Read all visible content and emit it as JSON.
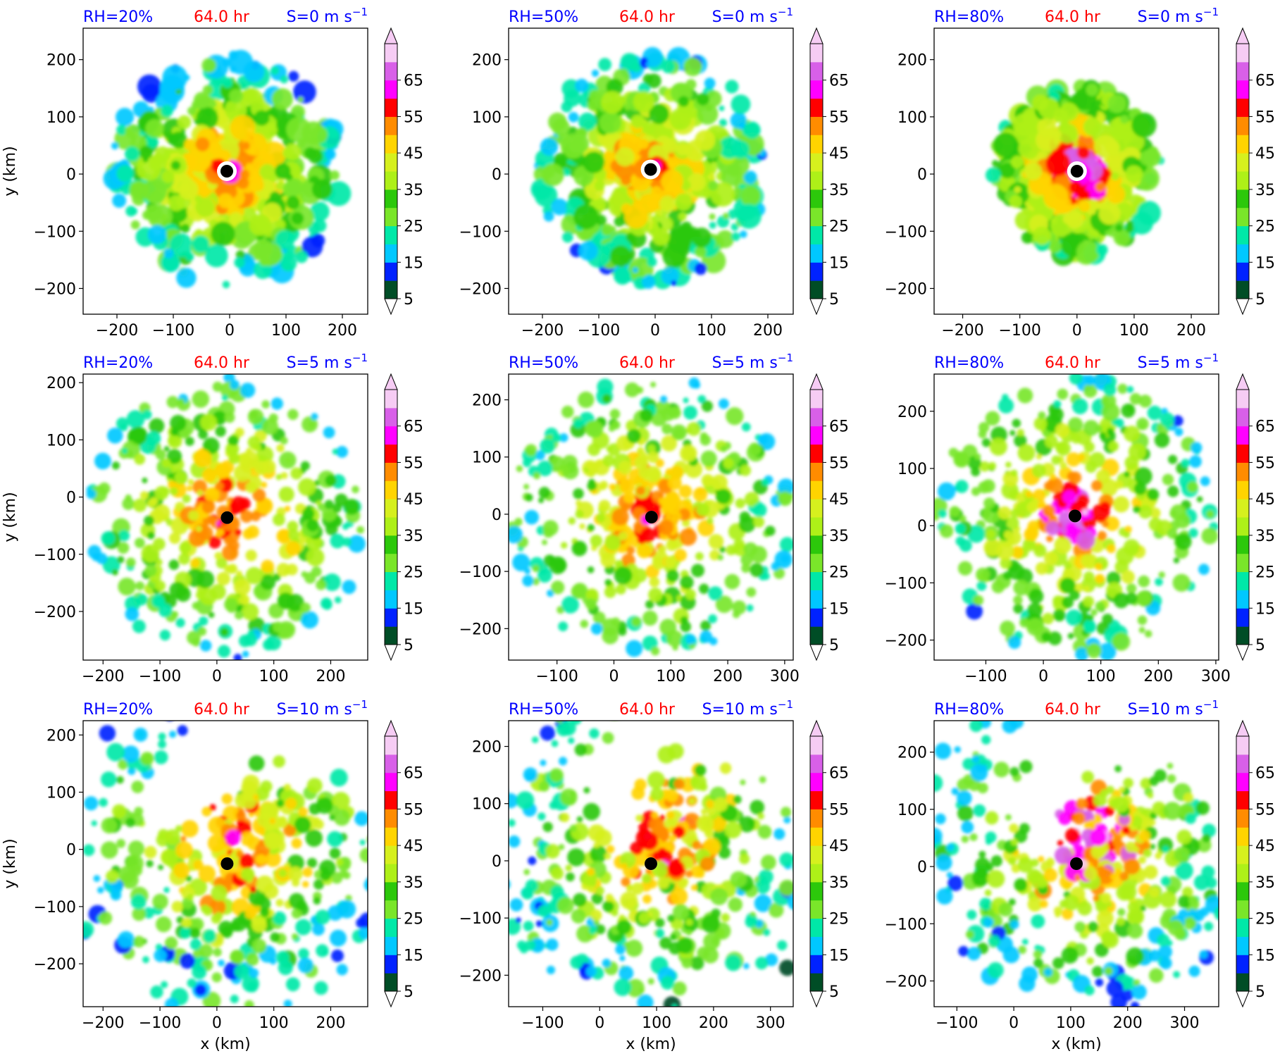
{
  "chart_data": {
    "type": "heatmap",
    "time_label": "64.0 hr",
    "colors": {
      "rh_label": "#0000ff",
      "time_label": "#ff0000",
      "shear_label": "#0000ff",
      "center_marker": "#000000"
    },
    "colorbar": {
      "ticks": [
        "5",
        "15",
        "25",
        "35",
        "45",
        "55",
        "65"
      ],
      "levels": [
        5,
        10,
        15,
        20,
        25,
        30,
        35,
        40,
        45,
        50,
        55,
        60,
        65,
        70
      ],
      "colors": [
        "#004d26",
        "#0022ff",
        "#00c8ff",
        "#00e8a8",
        "#7ae62a",
        "#2cc80b",
        "#aef018",
        "#d6f01e",
        "#ffd400",
        "#ff8c00",
        "#ff0000",
        "#ff00ff",
        "#d860e8",
        "#f6ccf4"
      ],
      "extend": "both"
    },
    "xlabel": "x (km)",
    "ylabel": "y (km)",
    "panels": [
      {
        "rh": "RH=20%",
        "shear_prefix": "S=0 m s",
        "shear_exp": "−1",
        "xlim": [
          -260,
          245
        ],
        "ylim": [
          -245,
          255
        ],
        "xticks": [
          {
            "v": -200,
            "t": "−200"
          },
          {
            "v": -100,
            "t": "−100"
          },
          {
            "v": 0,
            "t": "0"
          },
          {
            "v": 100,
            "t": "100"
          },
          {
            "v": 200,
            "t": "200"
          }
        ],
        "yticks": [
          {
            "v": 200,
            "t": "200"
          },
          {
            "v": 100,
            "t": "100"
          },
          {
            "v": 0,
            "t": "0"
          },
          {
            "v": -100,
            "t": "−100"
          },
          {
            "v": -200,
            "t": "−200"
          }
        ],
        "center": {
          "x": -5,
          "y": 5
        }
      },
      {
        "rh": "RH=50%",
        "shear_prefix": "S=0 m s",
        "shear_exp": "−1",
        "xlim": [
          -260,
          245
        ],
        "ylim": [
          -245,
          255
        ],
        "xticks": [
          {
            "v": -200,
            "t": "−200"
          },
          {
            "v": -100,
            "t": "−100"
          },
          {
            "v": 0,
            "t": "0"
          },
          {
            "v": 100,
            "t": "100"
          },
          {
            "v": 200,
            "t": "200"
          }
        ],
        "yticks": [
          {
            "v": 200,
            "t": "200"
          },
          {
            "v": 100,
            "t": "100"
          },
          {
            "v": 0,
            "t": "0"
          },
          {
            "v": -100,
            "t": "−100"
          },
          {
            "v": -200,
            "t": "−200"
          }
        ],
        "center": {
          "x": -8,
          "y": 8
        }
      },
      {
        "rh": "RH=80%",
        "shear_prefix": "S=0 m s",
        "shear_exp": "−1",
        "xlim": [
          -250,
          248
        ],
        "ylim": [
          -245,
          255
        ],
        "xticks": [
          {
            "v": -200,
            "t": "−200"
          },
          {
            "v": -100,
            "t": "−100"
          },
          {
            "v": 0,
            "t": "0"
          },
          {
            "v": 100,
            "t": "100"
          },
          {
            "v": 200,
            "t": "200"
          }
        ],
        "yticks": [
          {
            "v": 200,
            "t": "200"
          },
          {
            "v": 100,
            "t": "100"
          },
          {
            "v": 0,
            "t": "0"
          },
          {
            "v": -100,
            "t": "−100"
          },
          {
            "v": -200,
            "t": "−200"
          }
        ],
        "center": {
          "x": 0,
          "y": 5
        }
      },
      {
        "rh": "RH=20%",
        "shear_prefix": "S=5 m s",
        "shear_exp": "−1",
        "xlim": [
          -235,
          265
        ],
        "ylim": [
          -285,
          215
        ],
        "xticks": [
          {
            "v": -200,
            "t": "−200"
          },
          {
            "v": -100,
            "t": "−100"
          },
          {
            "v": 0,
            "t": "0"
          },
          {
            "v": 100,
            "t": "100"
          },
          {
            "v": 200,
            "t": "200"
          }
        ],
        "yticks": [
          {
            "v": 200,
            "t": "200"
          },
          {
            "v": 100,
            "t": "100"
          },
          {
            "v": 0,
            "t": "0"
          },
          {
            "v": -100,
            "t": "−100"
          },
          {
            "v": -200,
            "t": "−200"
          }
        ],
        "center": {
          "x": 18,
          "y": -36
        }
      },
      {
        "rh": "RH=50%",
        "shear_prefix": "S=5 m s",
        "shear_exp": "−1",
        "xlim": [
          -185,
          315
        ],
        "ylim": [
          -255,
          245
        ],
        "xticks": [
          {
            "v": -100,
            "t": "−100"
          },
          {
            "v": 0,
            "t": "0"
          },
          {
            "v": 100,
            "t": "100"
          },
          {
            "v": 200,
            "t": "200"
          },
          {
            "v": 300,
            "t": "300"
          }
        ],
        "yticks": [
          {
            "v": 200,
            "t": "200"
          },
          {
            "v": 100,
            "t": "100"
          },
          {
            "v": 0,
            "t": "0"
          },
          {
            "v": -100,
            "t": "−100"
          },
          {
            "v": -200,
            "t": "−200"
          }
        ],
        "center": {
          "x": 66,
          "y": -5
        }
      },
      {
        "rh": "RH=80%",
        "shear_prefix": "S=5 m s",
        "shear_exp": "−1",
        "xlim": [
          -190,
          305
        ],
        "ylim": [
          -235,
          265
        ],
        "xticks": [
          {
            "v": -100,
            "t": "−100"
          },
          {
            "v": 0,
            "t": "0"
          },
          {
            "v": 100,
            "t": "100"
          },
          {
            "v": 200,
            "t": "200"
          },
          {
            "v": 300,
            "t": "300"
          }
        ],
        "yticks": [
          {
            "v": 200,
            "t": "200"
          },
          {
            "v": 100,
            "t": "100"
          },
          {
            "v": 0,
            "t": "0"
          },
          {
            "v": -100,
            "t": "−100"
          },
          {
            "v": -200,
            "t": "−200"
          }
        ],
        "center": {
          "x": 55,
          "y": 17
        }
      },
      {
        "rh": "RH=20%",
        "shear_prefix": "S=10 m s",
        "shear_exp": "−1",
        "xlim": [
          -235,
          265
        ],
        "ylim": [
          -275,
          225
        ],
        "xticks": [
          {
            "v": -200,
            "t": "−200"
          },
          {
            "v": -100,
            "t": "−100"
          },
          {
            "v": 0,
            "t": "0"
          },
          {
            "v": 100,
            "t": "100"
          },
          {
            "v": 200,
            "t": "200"
          }
        ],
        "yticks": [
          {
            "v": 200,
            "t": "200"
          },
          {
            "v": 100,
            "t": "100"
          },
          {
            "v": 0,
            "t": "0"
          },
          {
            "v": -100,
            "t": "−100"
          },
          {
            "v": -200,
            "t": "−200"
          }
        ],
        "center": {
          "x": 18,
          "y": -25
        }
      },
      {
        "rh": "RH=50%",
        "shear_prefix": "S=10 m s",
        "shear_exp": "−1",
        "xlim": [
          -160,
          340
        ],
        "ylim": [
          -255,
          245
        ],
        "xticks": [
          {
            "v": -100,
            "t": "−100"
          },
          {
            "v": 0,
            "t": "0"
          },
          {
            "v": 100,
            "t": "100"
          },
          {
            "v": 200,
            "t": "200"
          },
          {
            "v": 300,
            "t": "300"
          }
        ],
        "yticks": [
          {
            "v": 200,
            "t": "200"
          },
          {
            "v": 100,
            "t": "100"
          },
          {
            "v": 0,
            "t": "0"
          },
          {
            "v": -100,
            "t": "−100"
          },
          {
            "v": -200,
            "t": "−200"
          }
        ],
        "center": {
          "x": 90,
          "y": -5
        }
      },
      {
        "rh": "RH=80%",
        "shear_prefix": "S=10 m s",
        "shear_exp": "−1",
        "xlim": [
          -140,
          360
        ],
        "ylim": [
          -245,
          255
        ],
        "xticks": [
          {
            "v": -100,
            "t": "−100"
          },
          {
            "v": 0,
            "t": "0"
          },
          {
            "v": 100,
            "t": "100"
          },
          {
            "v": 200,
            "t": "200"
          },
          {
            "v": 300,
            "t": "300"
          }
        ],
        "yticks": [
          {
            "v": 200,
            "t": "200"
          },
          {
            "v": 100,
            "t": "100"
          },
          {
            "v": 0,
            "t": "0"
          },
          {
            "v": -100,
            "t": "−100"
          },
          {
            "v": -200,
            "t": "−200"
          }
        ],
        "center": {
          "x": 110,
          "y": 5
        }
      }
    ]
  }
}
